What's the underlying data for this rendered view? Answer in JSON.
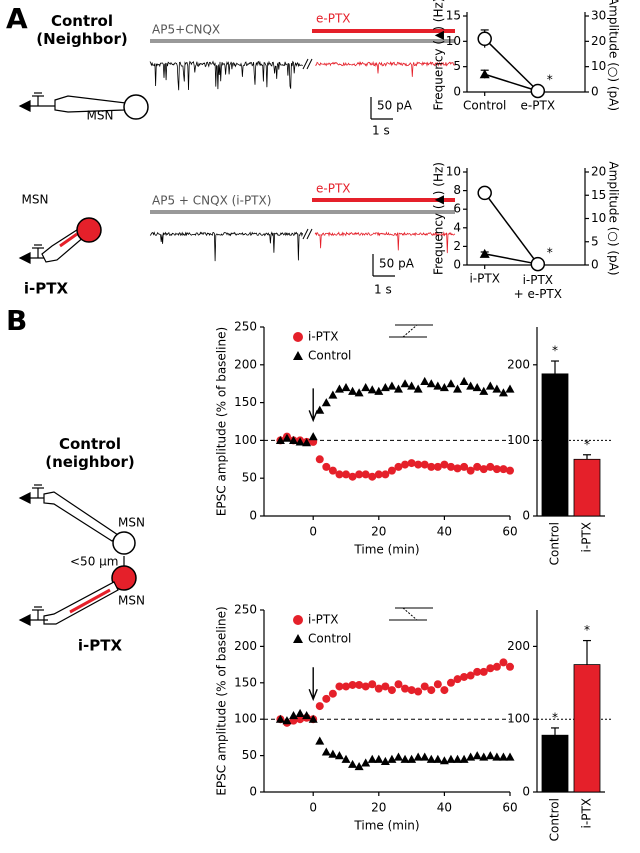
{
  "figure": {
    "panel_labels": [
      "A",
      "B"
    ],
    "A": {
      "row1": {
        "label": [
          "Control",
          "(Neighbor)"
        ],
        "cell": "MSN",
        "bar_gray": "AP5+CNQX",
        "bar_red": "e-PTX",
        "scale_y": "50 pA",
        "scale_x": "1 s"
      },
      "row2": {
        "label": "i-PTX",
        "cell": "MSN",
        "bar_gray": "AP5 + CNQX (i-PTX)",
        "bar_red": "e-PTX",
        "scale_y": "50 pA",
        "scale_x": "1 s"
      }
    },
    "B": {
      "label_top": [
        "Control",
        "(neighbor)"
      ],
      "cell_top": "MSN",
      "distance": "<50 µm",
      "cell_bottom": "MSN",
      "label_bottom": "i-PTX"
    }
  },
  "chart_data": [
    {
      "type": "line",
      "categories": [
        "Control",
        "e-PTX"
      ],
      "ylabel": "Frequency (▲) (Hz)",
      "y2label": "Amplitude (○) (pA)",
      "ylim": [
        0,
        15
      ],
      "yticks": [
        0,
        5,
        10,
        15
      ],
      "y2lim": [
        0,
        30
      ],
      "y2ticks": [
        0,
        10,
        20,
        30
      ],
      "series": [
        {
          "marker": "triangle",
          "color": "#000000",
          "values": [
            3.5,
            0.2
          ],
          "errors": [
            0.8,
            0.1
          ]
        },
        {
          "marker": "open-circle",
          "axis": "y2",
          "color": "#000000",
          "values": [
            21,
            0.4
          ],
          "errors": [
            3.5,
            0.3
          ]
        }
      ],
      "annotations": [
        null,
        "*"
      ]
    },
    {
      "type": "line",
      "categories": [
        "i-PTX",
        [
          "i-PTX",
          "+ e-PTX"
        ]
      ],
      "ylabel": "Frequency (▲) (Hz)",
      "y2label": "Amplitude (○) (pA)",
      "ylim": [
        0,
        10
      ],
      "yticks": [
        0,
        2,
        4,
        6,
        8,
        10
      ],
      "y2lim": [
        0,
        20
      ],
      "y2ticks": [
        0,
        5,
        10,
        15,
        20
      ],
      "series": [
        {
          "marker": "triangle",
          "color": "#000000",
          "values": [
            1.2,
            0.1
          ],
          "errors": [
            0.2,
            0.05
          ]
        },
        {
          "marker": "open-circle",
          "axis": "y2",
          "color": "#000000",
          "values": [
            15.5,
            0.2
          ],
          "errors": [
            1,
            0.2
          ]
        }
      ],
      "annotations": [
        null,
        "*"
      ]
    },
    {
      "type": "timecourse",
      "xlabel": "Time (min)",
      "ylabel": "EPSC amplitude (% of baseline)",
      "xlim": [
        -15,
        60
      ],
      "xticks": [
        0,
        20,
        40,
        60
      ],
      "ylim": [
        0,
        250
      ],
      "yticks": [
        0,
        50,
        100,
        150,
        200,
        250
      ],
      "reference_line": 100,
      "arrow_x": 0,
      "inset": "up",
      "x": [
        -10,
        -8,
        -6,
        -4,
        -2,
        0,
        2,
        4,
        6,
        8,
        10,
        12,
        14,
        16,
        18,
        20,
        22,
        24,
        26,
        28,
        30,
        32,
        34,
        36,
        38,
        40,
        42,
        44,
        46,
        48,
        50,
        52,
        54,
        56,
        58,
        60
      ],
      "series": [
        {
          "name": "i-PTX",
          "marker": "circle",
          "color": "#e5202a",
          "values": [
            100,
            105,
            100,
            100,
            98,
            98,
            75,
            65,
            60,
            55,
            55,
            52,
            55,
            55,
            52,
            55,
            55,
            60,
            65,
            68,
            70,
            68,
            68,
            65,
            65,
            68,
            65,
            63,
            65,
            60,
            65,
            62,
            65,
            62,
            62,
            60
          ]
        },
        {
          "name": "Control",
          "marker": "triangle",
          "color": "#000000",
          "values": [
            100,
            103,
            100,
            98,
            97,
            105,
            140,
            150,
            160,
            168,
            170,
            165,
            163,
            170,
            167,
            165,
            170,
            172,
            168,
            175,
            172,
            168,
            178,
            175,
            172,
            170,
            175,
            168,
            178,
            172,
            170,
            165,
            172,
            168,
            163,
            168
          ]
        }
      ]
    },
    {
      "type": "bar",
      "categories": [
        "Control",
        "i-PTX"
      ],
      "values": [
        188,
        75
      ],
      "errors": [
        17,
        6
      ],
      "colors": [
        "#000000",
        "#e5202a"
      ],
      "ylim": [
        0,
        250
      ],
      "yticks": [
        0,
        100,
        200
      ],
      "reference_line": 100,
      "annotations": [
        "*",
        "*"
      ]
    },
    {
      "type": "timecourse",
      "xlabel": "Time (min)",
      "ylabel": "EPSC amplitude (% of baseline)",
      "xlim": [
        -15,
        60
      ],
      "xticks": [
        0,
        20,
        40,
        60
      ],
      "ylim": [
        0,
        250
      ],
      "yticks": [
        0,
        50,
        100,
        150,
        200,
        250
      ],
      "reference_line": 100,
      "arrow_x": 0,
      "inset": "down",
      "x": [
        -10,
        -8,
        -6,
        -4,
        -2,
        0,
        2,
        4,
        6,
        8,
        10,
        12,
        14,
        16,
        18,
        20,
        22,
        24,
        26,
        28,
        30,
        32,
        34,
        36,
        38,
        40,
        42,
        44,
        46,
        48,
        50,
        52,
        54,
        56,
        58,
        60
      ],
      "series": [
        {
          "name": "i-PTX",
          "marker": "circle",
          "color": "#e5202a",
          "values": [
            100,
            95,
            98,
            100,
            102,
            100,
            118,
            128,
            135,
            145,
            145,
            147,
            147,
            145,
            148,
            142,
            145,
            140,
            148,
            142,
            140,
            138,
            145,
            140,
            148,
            140,
            150,
            155,
            158,
            160,
            165,
            165,
            170,
            172,
            178,
            172
          ]
        },
        {
          "name": "Control",
          "marker": "triangle",
          "color": "#000000",
          "values": [
            100,
            98,
            105,
            108,
            105,
            100,
            70,
            55,
            52,
            50,
            45,
            38,
            35,
            40,
            45,
            45,
            42,
            45,
            48,
            45,
            45,
            48,
            48,
            45,
            45,
            43,
            45,
            45,
            45,
            48,
            50,
            48,
            50,
            48,
            48,
            48
          ]
        }
      ]
    },
    {
      "type": "bar",
      "categories": [
        "Control",
        "i-PTX"
      ],
      "values": [
        78,
        175
      ],
      "errors": [
        10,
        33
      ],
      "colors": [
        "#000000",
        "#e5202a"
      ],
      "ylim": [
        0,
        250
      ],
      "yticks": [
        0,
        100,
        200
      ],
      "reference_line": 100,
      "annotations": [
        "*",
        "*"
      ]
    }
  ]
}
